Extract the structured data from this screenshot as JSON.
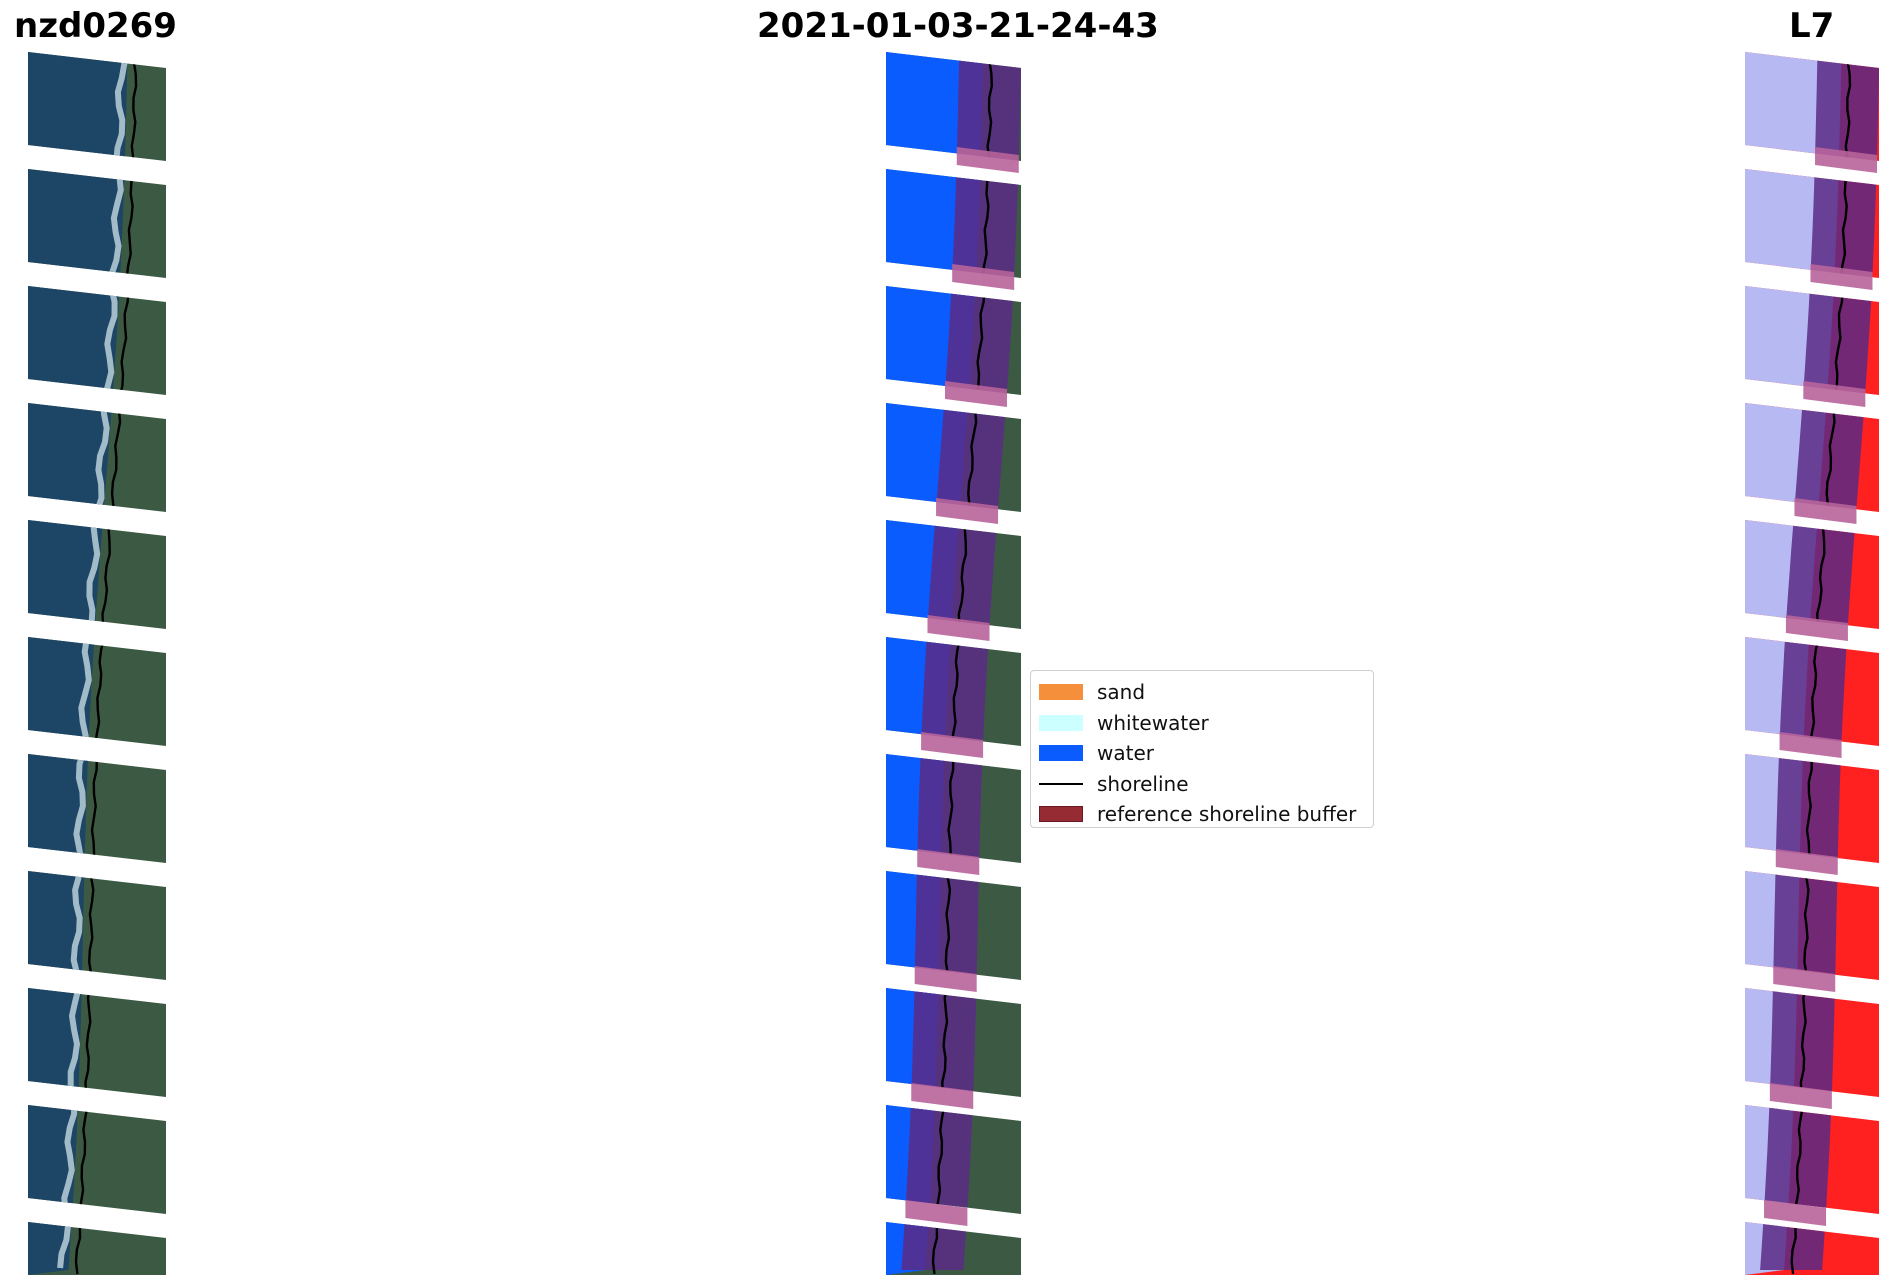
{
  "titles": {
    "site": "nzd0269",
    "date": "2021-01-03-21-24-43",
    "satellite": "L7"
  },
  "legend": {
    "items": [
      {
        "label": "sand",
        "color": "#f58f3c",
        "kind": "patch"
      },
      {
        "label": "whitewater",
        "color": "#ccffff",
        "kind": "patch"
      },
      {
        "label": "water",
        "color": "#0a5cff",
        "kind": "patch"
      },
      {
        "label": "shoreline",
        "color": "#000000",
        "kind": "line"
      },
      {
        "label": "reference shoreline buffer",
        "color": "#962b34",
        "kind": "patch"
      }
    ]
  },
  "colors": {
    "ocean": "#1d4566",
    "land": "#3c5a43",
    "water_class": "#0a5cff",
    "buffer": "#5b2a86",
    "buffer_gap": "#b8649a",
    "index_water": "#b7b9f2",
    "index_land": "#ff2020"
  },
  "panels": [
    {
      "name": "rgb-image-panel",
      "kind": "rgb"
    },
    {
      "name": "classified-image-panel",
      "kind": "classified"
    },
    {
      "name": "index-image-panel",
      "kind": "index"
    }
  ]
}
